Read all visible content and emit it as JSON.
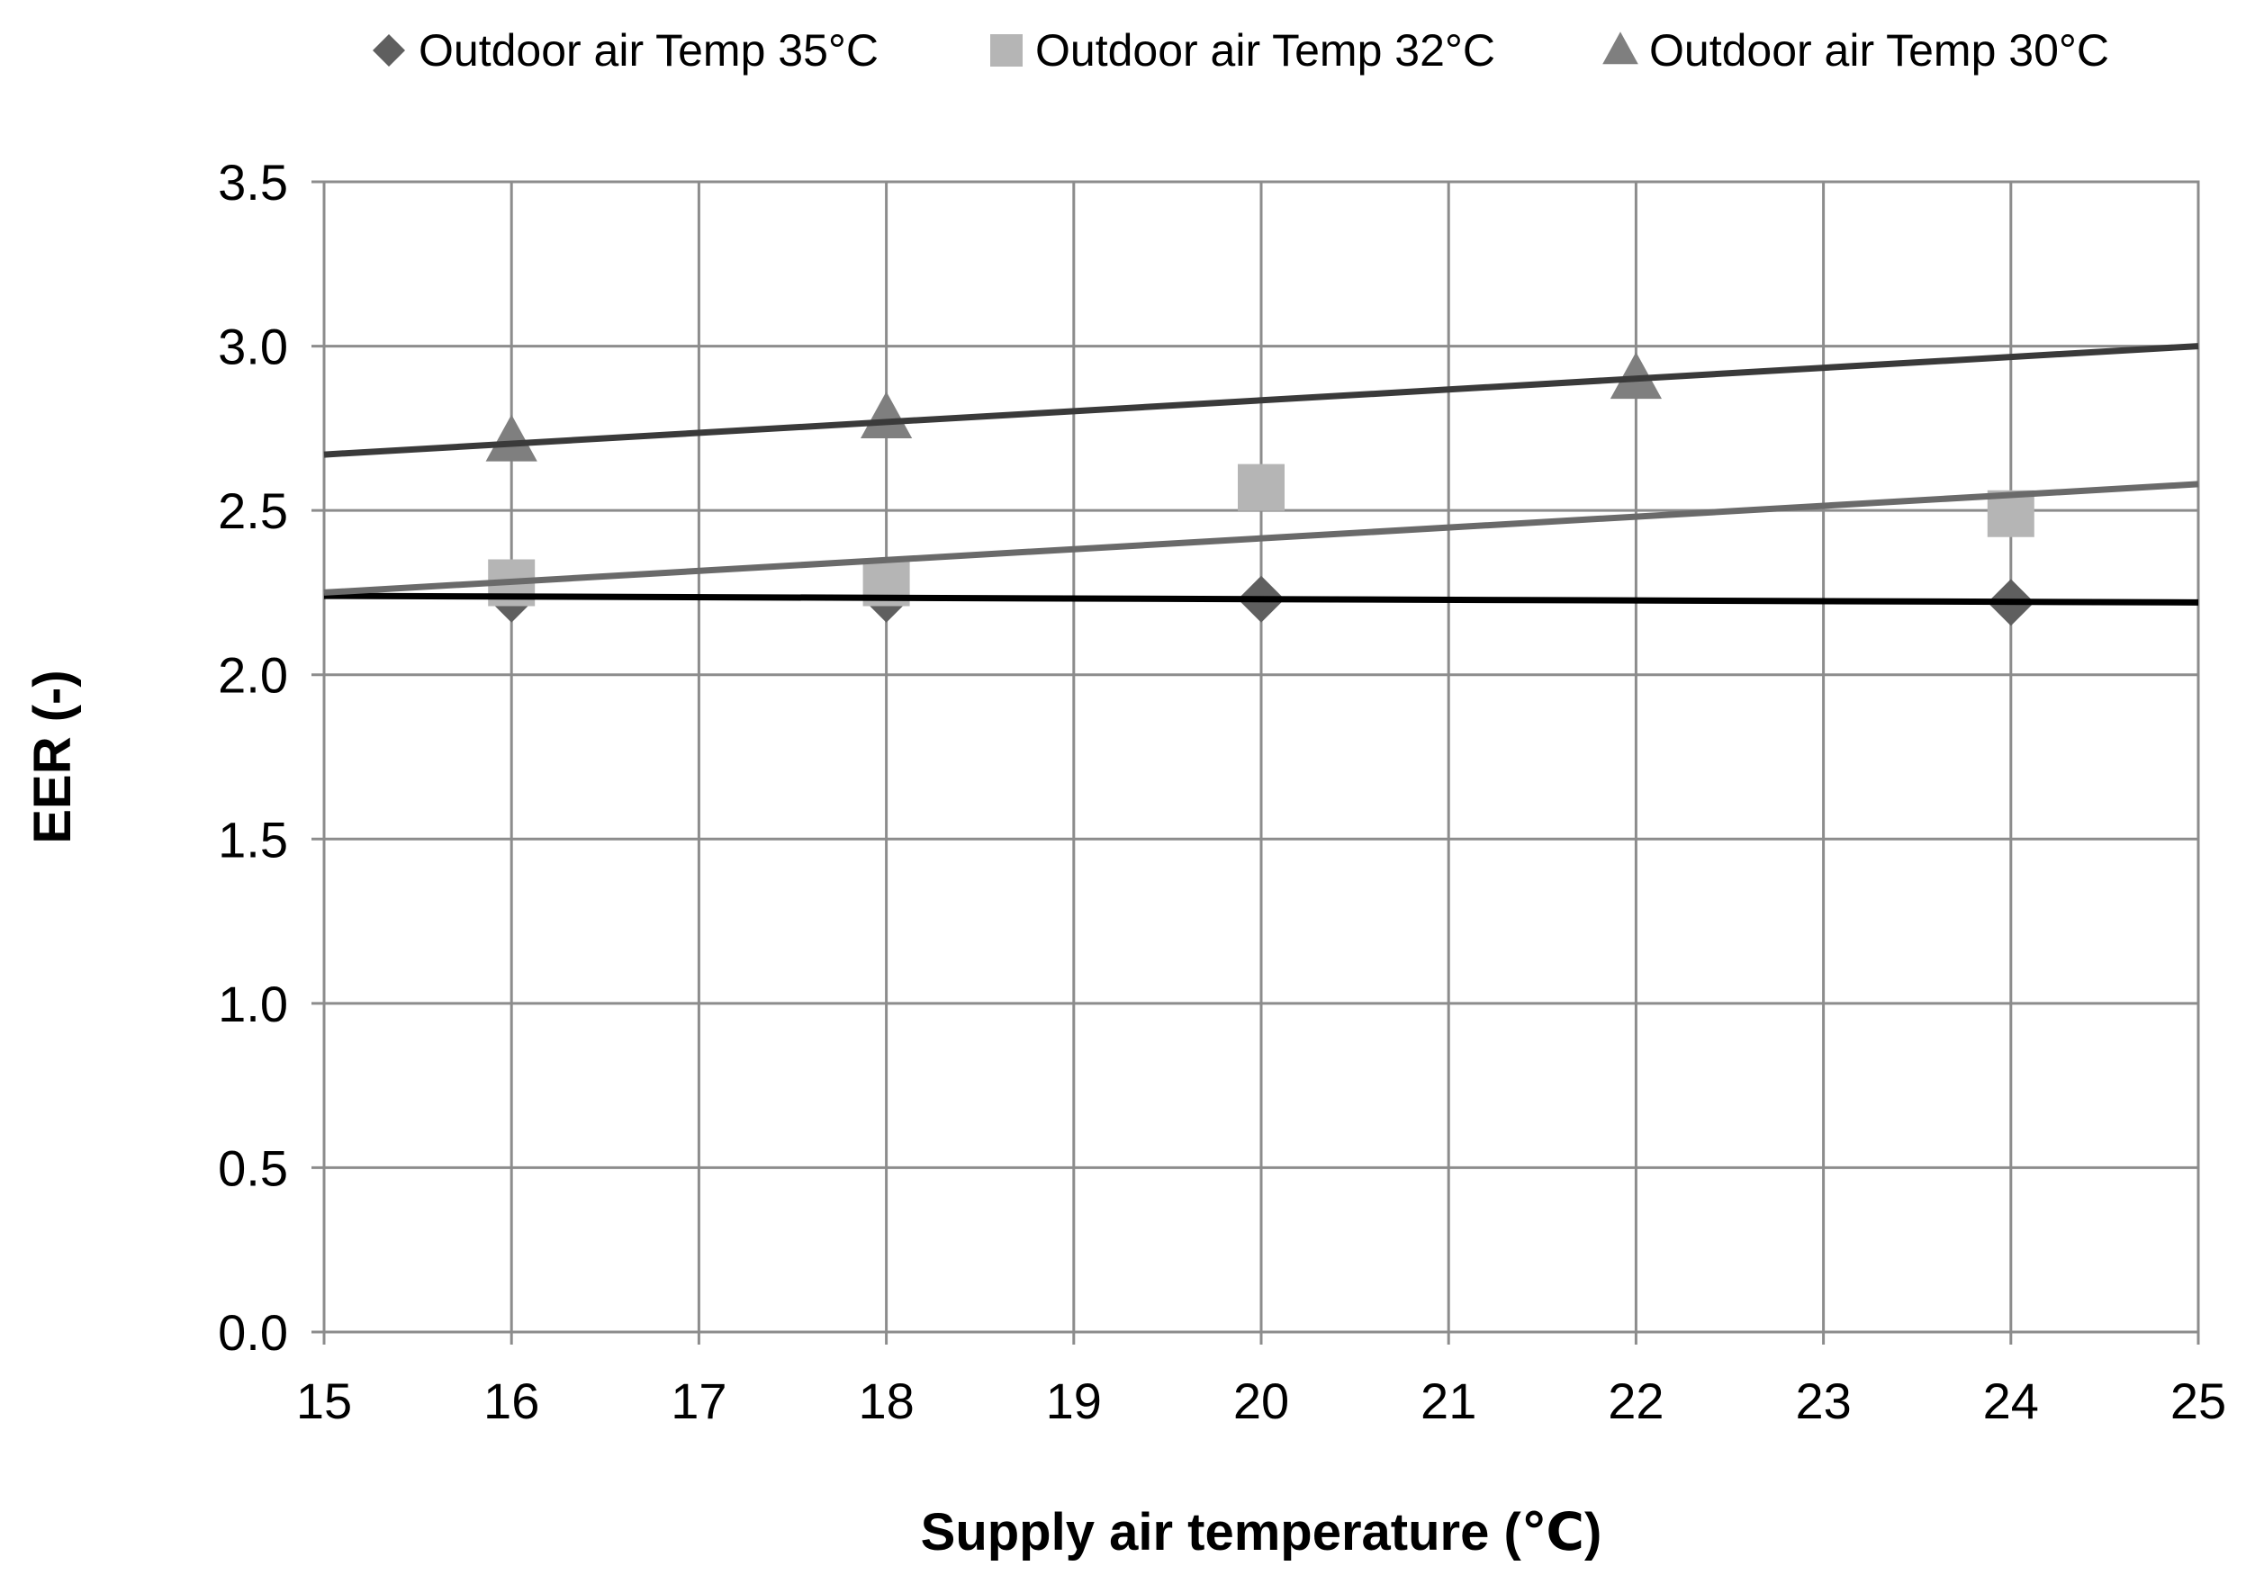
{
  "chart_data": {
    "type": "scatter",
    "xlabel": "Supply air temperature (℃)",
    "ylabel": "EER (-)",
    "xlim": [
      15,
      25
    ],
    "ylim": [
      0.0,
      3.5
    ],
    "x_ticks": [
      "15",
      "16",
      "17",
      "18",
      "19",
      "20",
      "21",
      "22",
      "23",
      "24",
      "25"
    ],
    "y_ticks": [
      "0.0",
      "0.5",
      "1.0",
      "1.5",
      "2.0",
      "2.5",
      "3.0",
      "3.5"
    ],
    "grid": true,
    "legend_position": "top",
    "series": [
      {
        "name": "Outdoor air Temp 35°C",
        "marker": "diamond",
        "color": "#5f5f5f",
        "x": [
          16,
          18,
          20,
          24
        ],
        "values": [
          2.23,
          2.23,
          2.23,
          2.22
        ],
        "trendline": {
          "x": [
            15,
            25
          ],
          "y": [
            2.24,
            2.22
          ],
          "color": "#000000"
        }
      },
      {
        "name": "Outdoor air Temp 32°C",
        "marker": "square",
        "color": "#b5b5b5",
        "x": [
          16,
          18,
          20,
          24
        ],
        "values": [
          2.28,
          2.28,
          2.57,
          2.49
        ],
        "trendline": {
          "x": [
            15,
            25
          ],
          "y": [
            2.25,
            2.58
          ],
          "color": "#6a6a6a"
        }
      },
      {
        "name": "Outdoor air Temp 30°C",
        "marker": "triangle",
        "color": "#7f7f7f",
        "x": [
          16,
          18,
          22
        ],
        "values": [
          2.71,
          2.78,
          2.9
        ],
        "trendline": {
          "x": [
            15,
            25
          ],
          "y": [
            2.67,
            3.0
          ],
          "color": "#3a3a3a"
        }
      }
    ]
  }
}
